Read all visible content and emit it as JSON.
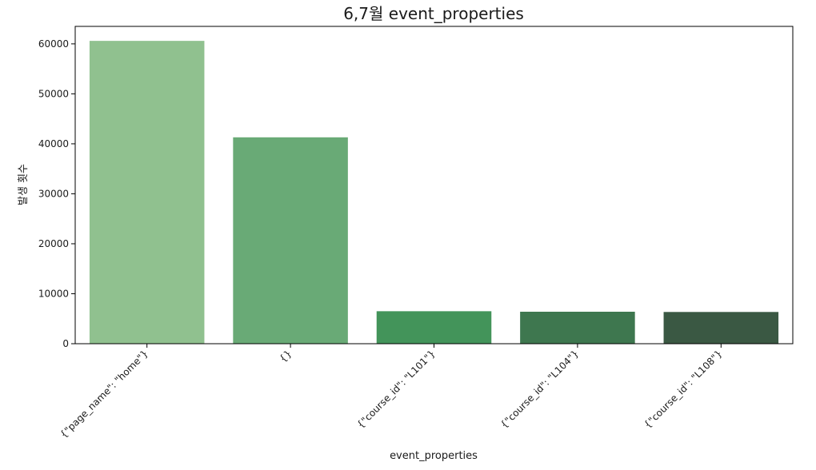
{
  "chart_data": {
    "type": "bar",
    "title": "6,7월 event_properties",
    "xlabel": "event_properties",
    "ylabel": "발생 횟수",
    "categories": [
      "{\"page_name\": \"home\"}",
      "{}",
      "{\"course_id\": \"L101\"}",
      "{\"course_id\": \"L104\"}",
      "{\"course_id\": \"L108\"}"
    ],
    "values": [
      60600,
      41300,
      6500,
      6400,
      6350
    ],
    "colors": [
      "#90c18f",
      "#69aa76",
      "#43945a",
      "#3e774f",
      "#3a5843"
    ],
    "ylim": [
      0,
      63500
    ],
    "yticks": [
      0,
      10000,
      20000,
      30000,
      40000,
      50000,
      60000
    ],
    "ytick_labels": [
      "0",
      "10000",
      "20000",
      "30000",
      "40000",
      "50000",
      "60000"
    ],
    "grid": false,
    "legend": false
  }
}
